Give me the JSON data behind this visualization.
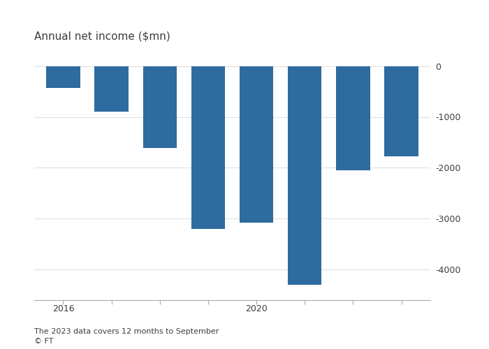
{
  "years": [
    2016,
    2017,
    2018,
    2019,
    2020,
    2021,
    2022,
    2023
  ],
  "values": [
    -430,
    -900,
    -1610,
    -3200,
    -3080,
    -4300,
    -2050,
    -1780
  ],
  "bar_color": "#2e6b9e",
  "title": "Annual net income ($mn)",
  "footnote": "The 2023 data covers 12 months to September",
  "credit": "© FT",
  "ylim": [
    -4600,
    200
  ],
  "yticks": [
    0,
    -1000,
    -2000,
    -3000,
    -4000
  ],
  "ytick_labels": [
    "0",
    "-1000",
    "-2000",
    "-3000",
    "-4000"
  ],
  "bg_color": "#ffffff",
  "plot_bg": "#ffffff",
  "text_color": "#3d3d3d",
  "grid_color": "#e0e0e0",
  "axis_color": "#aaaaaa",
  "label_years": [
    2016,
    2020
  ],
  "title_fontsize": 11,
  "tick_fontsize": 9,
  "footnote_fontsize": 8
}
